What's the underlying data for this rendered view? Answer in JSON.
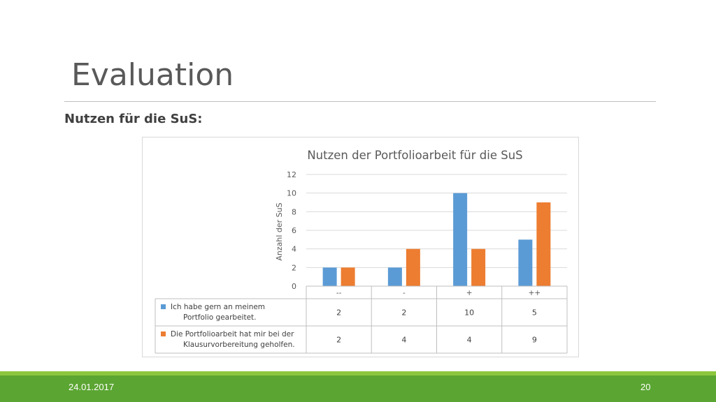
{
  "slide": {
    "title": "Evaluation",
    "subtitle": "Nutzen für die SuS:",
    "footer_date": "24.01.2017",
    "page_number": "20"
  },
  "colors": {
    "series1": "#5b9bd5",
    "series2": "#ed7d31",
    "footer_dark": "#5ba532",
    "footer_light": "#8cc63e"
  },
  "chart_data": {
    "type": "bar",
    "title": "Nutzen der Portfolioarbeit für die SuS",
    "ylabel": "Anzahl der SuS",
    "ylim": [
      0,
      12
    ],
    "yticks": [
      0,
      2,
      4,
      6,
      8,
      10,
      12
    ],
    "grid": true,
    "categories": [
      "--",
      "-",
      "+",
      "++"
    ],
    "series": [
      {
        "name": "Ich habe gern an meinem Portfolio gearbeitet.",
        "values": [
          2,
          2,
          10,
          5
        ]
      },
      {
        "name": "Die Portfolioarbeit hat mir bei der Klausurvorbereitung geholfen.",
        "values": [
          2,
          4,
          4,
          9
        ]
      }
    ],
    "legend_placement": "data-table"
  }
}
